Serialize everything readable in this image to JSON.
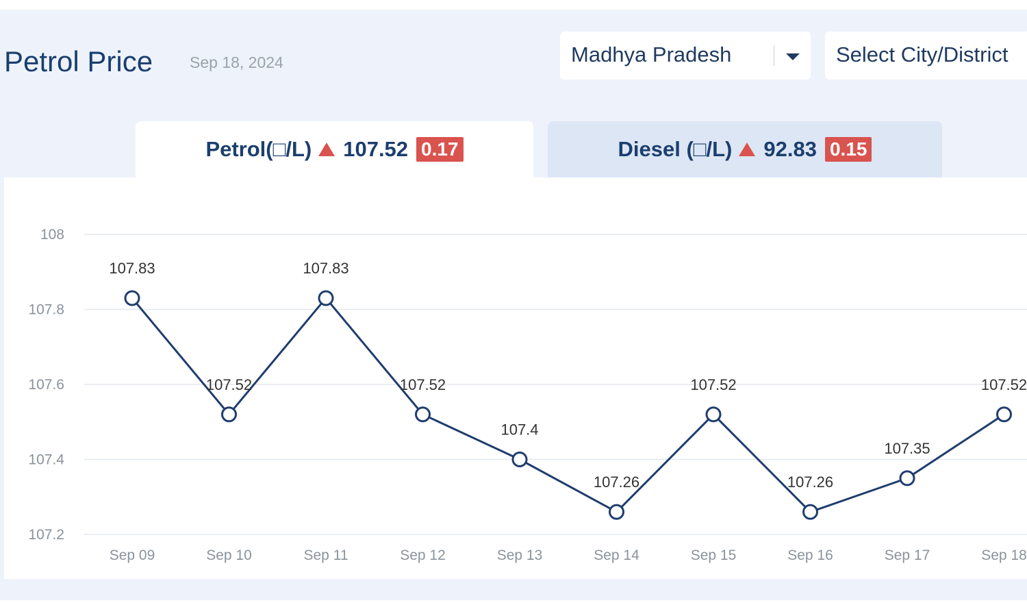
{
  "header": {
    "title": "Petrol Price",
    "date": "Sep 18, 2024"
  },
  "filters": {
    "state": "Madhya Pradesh",
    "city_placeholder": "Select City/District"
  },
  "tabs": [
    {
      "label": "Petrol(□/L)",
      "price": "107.52",
      "change": "0.17",
      "direction": "up"
    },
    {
      "label": "Diesel (□/L)",
      "price": "92.83",
      "change": "0.15",
      "direction": "up"
    }
  ],
  "colors": {
    "accent": "#1b3f6e",
    "line": "#1f3d6e",
    "badge": "#d9534f",
    "background": "#eef3fb"
  },
  "icons": {
    "state_dropdown": "caret-down-icon",
    "change_indicator": "triangle-up-icon"
  },
  "chart_data": {
    "type": "line",
    "categories": [
      "Sep 09",
      "Sep 10",
      "Sep 11",
      "Sep 12",
      "Sep 13",
      "Sep 14",
      "Sep 15",
      "Sep 16",
      "Sep 17",
      "Sep 18"
    ],
    "series": [
      {
        "values": [
          107.83,
          107.52,
          107.83,
          107.52,
          107.4,
          107.26,
          107.52,
          107.26,
          107.35,
          107.52
        ]
      }
    ],
    "y_ticks": [
      "108",
      "107.8",
      "107.6",
      "107.4",
      "107.2"
    ],
    "ylim": [
      107.2,
      108
    ],
    "grid": true,
    "legend": "none"
  }
}
